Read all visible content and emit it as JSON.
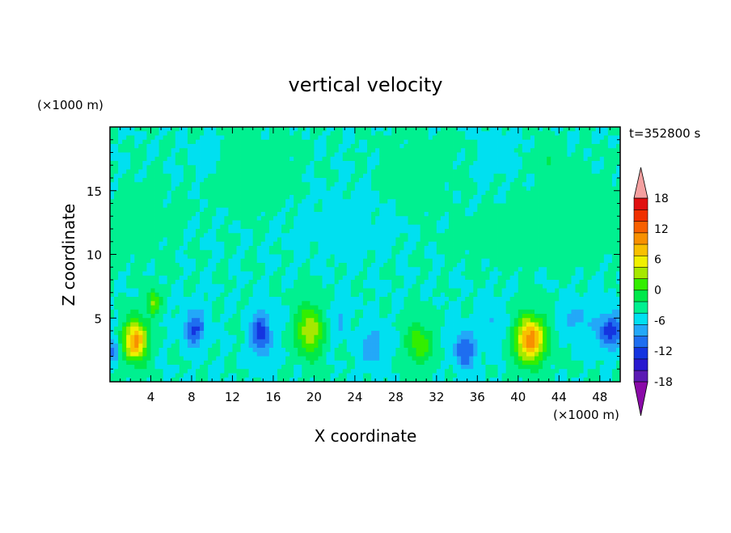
{
  "chart_data": {
    "type": "heatmap",
    "title": "vertical velocity",
    "xlabel": "X coordinate",
    "ylabel": "Z coordinate",
    "x_unit": "(×1000 m)",
    "y_unit": "(×1000 m)",
    "time_label": "t=352800 s",
    "xlim": [
      0,
      50
    ],
    "ylim": [
      0,
      20
    ],
    "x_ticks": [
      4,
      8,
      12,
      16,
      20,
      24,
      28,
      32,
      36,
      40,
      44,
      48
    ],
    "y_ticks": [
      5,
      10,
      15
    ],
    "colorbar": {
      "min": -21,
      "max": 21,
      "step": 3,
      "tick_labels": [
        18,
        12,
        6,
        0,
        -6,
        -12,
        -18
      ],
      "colors": [
        "#8a0aa8",
        "#5b1ab4",
        "#2a1ad0",
        "#1434e0",
        "#1e6ef0",
        "#23a8f8",
        "#00e0f0",
        "#00f090",
        "#00e84a",
        "#33ee00",
        "#a6e800",
        "#f0f000",
        "#f8c000",
        "#f89000",
        "#f86000",
        "#f03000",
        "#e01010",
        "#f4a0a0"
      ]
    },
    "cells": [
      {
        "x": 2.5,
        "z": 3.2,
        "w": 2.4,
        "sx": 1.2,
        "sz": 1.6
      },
      {
        "x": 4.3,
        "z": 6.2,
        "w": 1.2,
        "sx": 0.6,
        "sz": 1.0
      },
      {
        "x": 8.3,
        "z": 4.2,
        "w": -1.2,
        "sx": 1.0,
        "sz": 1.4
      },
      {
        "x": 14.8,
        "z": 3.8,
        "w": -1.3,
        "sx": 1.0,
        "sz": 1.8
      },
      {
        "x": 19.6,
        "z": 4.0,
        "w": 1.5,
        "sx": 1.3,
        "sz": 2.0
      },
      {
        "x": 25.8,
        "z": 2.8,
        "w": -0.7,
        "sx": 1.2,
        "sz": 1.6
      },
      {
        "x": 30.3,
        "z": 3.0,
        "w": 1.1,
        "sx": 1.2,
        "sz": 1.6
      },
      {
        "x": 34.8,
        "z": 2.5,
        "w": -1.2,
        "sx": 1.0,
        "sz": 1.4
      },
      {
        "x": 41.2,
        "z": 3.3,
        "w": 2.5,
        "sx": 1.5,
        "sz": 1.8
      },
      {
        "x": 49.0,
        "z": 4.0,
        "w": -1.3,
        "sx": 1.3,
        "sz": 1.4
      },
      {
        "x": 0.3,
        "z": 2.5,
        "w": -0.9,
        "sx": 0.6,
        "sz": 1.0
      },
      {
        "x": 22.5,
        "z": 5.0,
        "w": -0.4,
        "sx": 1.0,
        "sz": 1.5
      },
      {
        "x": 37.5,
        "z": 4.5,
        "w": -0.4,
        "sx": 1.2,
        "sz": 1.8
      },
      {
        "x": 45.5,
        "z": 5.0,
        "w": -0.5,
        "sx": 1.5,
        "sz": 1.5
      },
      {
        "x": 43.0,
        "z": 17.5,
        "w": 0.4,
        "sx": 0.9,
        "sz": 1.2
      },
      {
        "x": 9.5,
        "z": 17.5,
        "w": -0.2,
        "sx": 1.2,
        "sz": 1.2
      },
      {
        "x": 38.0,
        "z": 18.0,
        "w": -0.18,
        "sx": 1.2,
        "sz": 1.2
      },
      {
        "x": 33.0,
        "z": 18.5,
        "w": 0.2,
        "sx": 0.8,
        "sz": 0.8
      },
      {
        "x": 14.0,
        "z": 16.5,
        "w": 0.12,
        "sx": 4.0,
        "sz": 2.5
      },
      {
        "x": 30.0,
        "z": 16.5,
        "w": 0.1,
        "sx": 3.0,
        "sz": 2.5
      },
      {
        "x": 46.0,
        "z": 13.0,
        "w": 0.12,
        "sx": 4.0,
        "sz": 3.0
      },
      {
        "x": 3.0,
        "z": 12.0,
        "w": 0.1,
        "sx": 3.0,
        "sz": 3.0
      },
      {
        "x": 40.0,
        "z": 11.0,
        "w": 0.12,
        "sx": 6.0,
        "sz": 2.0
      },
      {
        "x": 23.0,
        "z": 12.0,
        "w": -0.06,
        "sx": 5.0,
        "sz": 3.0
      }
    ]
  }
}
